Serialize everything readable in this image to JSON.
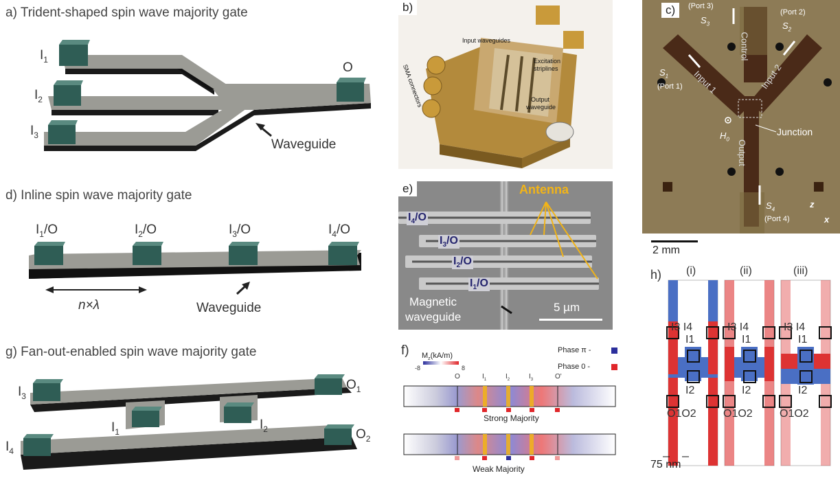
{
  "panels": {
    "a": {
      "title": "a) Trident-shaped spin wave majority gate",
      "in1": "I",
      "in1_sub": "1",
      "in2": "I",
      "in2_sub": "2",
      "in3": "I",
      "in3_sub": "3",
      "out": "O",
      "waveguide": "Waveguide"
    },
    "b": {
      "label": "b)",
      "input_waveguides": "Input waveguides",
      "excitation": "Excitation",
      "striplines": "striplines",
      "output": "Output",
      "output2": "waveguide",
      "sma": "SMA connectors"
    },
    "c": {
      "label": "c)",
      "port3": "(Port 3)",
      "port2": "(Port 2)",
      "port1": "(Port 1)",
      "port4": "(Port 4)",
      "s3": "S",
      "s3_sub": "3",
      "s2": "S",
      "s2_sub": "2",
      "s1": "S",
      "s1_sub": "1",
      "s4": "S",
      "s4_sub": "4",
      "control": "Control",
      "input1": "Input 1",
      "input2": "Input 2",
      "output": "Output",
      "junction": "Junction",
      "h0": "H",
      "h0_sub": "0",
      "axis_z": "z",
      "axis_x": "x",
      "scale": "2 mm"
    },
    "d": {
      "title": "d) Inline spin wave majority gate",
      "p1": "I",
      "p1_sub": "1",
      "p1_suf": "/O",
      "p2": "I",
      "p2_sub": "2",
      "p2_suf": "/O",
      "p3": "I",
      "p3_sub": "3",
      "p3_suf": "/O",
      "p4": "I",
      "p4_sub": "4",
      "p4_suf": "/O",
      "spacing": "n×λ",
      "waveguide": "Waveguide"
    },
    "e": {
      "label": "e)",
      "antenna": "Antenna",
      "i4": "I",
      "i4_sub": "4",
      "i4_suf": "/O",
      "i3": "I",
      "i3_sub": "3",
      "i3_suf": "/O",
      "i2": "I",
      "i2_sub": "2",
      "i2_suf": "/O",
      "i1": "I",
      "i1_sub": "1",
      "i1_suf": "/O",
      "mag1": "Magnetic",
      "mag2": "waveguide",
      "scale": "5 µm"
    },
    "f": {
      "label": "f)",
      "mz": "M",
      "mz_sub": "z",
      "mz_unit": "(kA/m)",
      "cmin": "-8",
      "cmax": "8",
      "phase_pi": "Phase π -",
      "phase_0": "Phase 0 -",
      "o": "O",
      "i1": "I",
      "i1_sub": "1",
      "i2": "I",
      "i2_sub": "2",
      "i3": "I",
      "i3_sub": "3",
      "o2": "O'",
      "strong": "Strong Majority",
      "weak": "Weak Majority"
    },
    "g": {
      "title": "g) Fan-out-enabled spin wave majority gate",
      "i3": "I",
      "i3_sub": "3",
      "i4": "I",
      "i4_sub": "4",
      "i1": "I",
      "i1_sub": "1",
      "i2": "I",
      "i2_sub": "2",
      "o1": "O",
      "o1_sub": "1",
      "o2": "O",
      "o2_sub": "2"
    },
    "h": {
      "label": "h)",
      "c1": "(i)",
      "c2": "(ii)",
      "c3": "(iii)",
      "i3": "I3",
      "i4": "I4",
      "i1": "I1",
      "i2": "I2",
      "o12": "O1O2",
      "scale": "75 nm"
    }
  },
  "colors": {
    "pad": "#3f6e65",
    "wg_top": "#9b9b95",
    "wg_side": "#1a1a1a",
    "antenna": "#f2b417",
    "phase_pi": "#2b2f9c",
    "phase_0": "#e0262a",
    "label_blue": "#24246e"
  }
}
